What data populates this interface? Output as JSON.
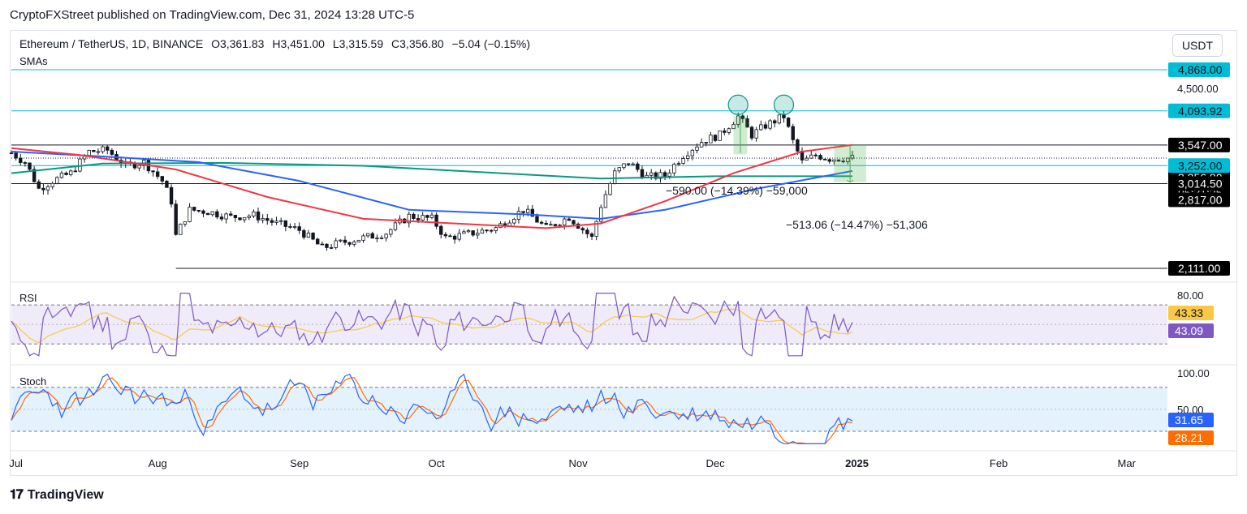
{
  "header": {
    "published_by": "CryptoFXStreet published on TradingView.com, Dec 31, 2024 13:28 UTC-5"
  },
  "symbol": {
    "name": "Ethereum / TetherUS, 1D, BINANCE",
    "open": "O3,361.83",
    "high": "H3,451.00",
    "low": "L3,315.59",
    "close": "C3,356.80",
    "change": "−5.04 (−0.15%)",
    "indicator": "SMAs",
    "currency": "USDT"
  },
  "brand": {
    "logo_text": "TradingView"
  },
  "colors": {
    "up": "#26a69a",
    "down": "#131722",
    "sma_red": "#f23645",
    "sma_blue": "#2962ff",
    "sma_green": "#089981",
    "cyan_line": "#00bcd4",
    "rsi": "#7e57c2",
    "rsi_ma": "#f9c846",
    "stoch_k": "#2962ff",
    "stoch_d": "#ff6d00"
  },
  "chart_data": [
    {
      "type": "candlestick",
      "x_ticks": [
        "Jul",
        "Aug",
        "Sep",
        "Oct",
        "Nov",
        "Dec",
        "2025",
        "Feb",
        "Mar"
      ],
      "y_ticks": [
        "4,500.00"
      ],
      "price_labels": [
        {
          "label": "4,868.00",
          "value": 4868,
          "bg": "#00bcd4",
          "color": "#131722"
        },
        {
          "label": "4,093.92",
          "value": 4093.92,
          "bg": "#00bcd4",
          "color": "#131722"
        },
        {
          "label": "3,547.00",
          "value": 3547,
          "bg": "#000000",
          "color": "#ffffff"
        },
        {
          "label": "3,356.80",
          "value": 3356.8,
          "bg": "#000000",
          "color": "#ffffff"
        },
        {
          "label": "05:31:25",
          "value": 3260,
          "bg": "#000000",
          "color": "#ffffff"
        },
        {
          "label": "3,252.00",
          "value": 3252,
          "bg": "#00bcd4",
          "color": "#131722"
        },
        {
          "label": "3,014.50",
          "value": 3014.5,
          "bg": "#000000",
          "color": "#ffffff"
        },
        {
          "label": "2,817.00",
          "value": 2817,
          "bg": "#000000",
          "color": "#ffffff"
        },
        {
          "label": "2,111.00",
          "value": 2111,
          "bg": "#000000",
          "color": "#ffffff"
        }
      ],
      "horizontal_levels": [
        {
          "value": 4868,
          "color": "#00bcd4"
        },
        {
          "value": 4093.92,
          "color": "#00bcd4"
        },
        {
          "value": 3547,
          "color": "#131722"
        },
        {
          "value": 3252,
          "color": "#00bcd4"
        },
        {
          "value": 3014.5,
          "color": "#131722"
        },
        {
          "value": 2111,
          "color": "#131722"
        }
      ],
      "annotations": [
        "−590.00 (−14.39%) −59,000",
        "−513.06 (−14.47%) −51,306"
      ],
      "close_path": [
        [
          "2024-06-30",
          3430
        ],
        [
          "2024-07-03",
          3300
        ],
        [
          "2024-07-06",
          2950
        ],
        [
          "2024-07-09",
          3050
        ],
        [
          "2024-07-13",
          3150
        ],
        [
          "2024-07-17",
          3450
        ],
        [
          "2024-07-21",
          3470
        ],
        [
          "2024-07-25",
          3250
        ],
        [
          "2024-07-29",
          3300
        ],
        [
          "2024-08-02",
          3050
        ],
        [
          "2024-08-04",
          2800
        ],
        [
          "2024-08-05",
          2420
        ],
        [
          "2024-08-08",
          2700
        ],
        [
          "2024-08-12",
          2680
        ],
        [
          "2024-08-17",
          2620
        ],
        [
          "2024-08-22",
          2640
        ],
        [
          "2024-08-27",
          2550
        ],
        [
          "2024-09-01",
          2480
        ],
        [
          "2024-09-06",
          2300
        ],
        [
          "2024-09-10",
          2350
        ],
        [
          "2024-09-15",
          2400
        ],
        [
          "2024-09-20",
          2450
        ],
        [
          "2024-09-25",
          2630
        ],
        [
          "2024-09-30",
          2600
        ],
        [
          "2024-10-03",
          2400
        ],
        [
          "2024-10-08",
          2440
        ],
        [
          "2024-10-14",
          2500
        ],
        [
          "2024-10-20",
          2700
        ],
        [
          "2024-10-25",
          2500
        ],
        [
          "2024-10-30",
          2620
        ],
        [
          "2024-11-04",
          2400
        ],
        [
          "2024-11-06",
          2750
        ],
        [
          "2024-11-09",
          3150
        ],
        [
          "2024-11-12",
          3300
        ],
        [
          "2024-11-16",
          3100
        ],
        [
          "2024-11-20",
          3120
        ],
        [
          "2024-11-24",
          3400
        ],
        [
          "2024-11-28",
          3600
        ],
        [
          "2024-12-02",
          3700
        ],
        [
          "2024-12-06",
          4000
        ],
        [
          "2024-12-09",
          3700
        ],
        [
          "2024-12-12",
          3850
        ],
        [
          "2024-12-16",
          4000
        ],
        [
          "2024-12-18",
          3600
        ],
        [
          "2024-12-20",
          3300
        ],
        [
          "2024-12-23",
          3400
        ],
        [
          "2024-12-26",
          3350
        ],
        [
          "2024-12-31",
          3356.8
        ]
      ],
      "sma_red": [
        [
          "2024-06-30",
          3500
        ],
        [
          "2024-07-15",
          3400
        ],
        [
          "2024-08-05",
          3200
        ],
        [
          "2024-08-25",
          2850
        ],
        [
          "2024-09-15",
          2600
        ],
        [
          "2024-10-05",
          2550
        ],
        [
          "2024-10-25",
          2500
        ],
        [
          "2024-11-06",
          2550
        ],
        [
          "2024-11-20",
          2800
        ],
        [
          "2024-12-05",
          3150
        ],
        [
          "2024-12-20",
          3450
        ],
        [
          "2024-12-31",
          3547
        ]
      ],
      "sma_blue": [
        [
          "2024-06-30",
          3450
        ],
        [
          "2024-07-20",
          3380
        ],
        [
          "2024-08-10",
          3300
        ],
        [
          "2024-09-01",
          3050
        ],
        [
          "2024-09-25",
          2700
        ],
        [
          "2024-10-20",
          2650
        ],
        [
          "2024-11-06",
          2600
        ],
        [
          "2024-11-20",
          2700
        ],
        [
          "2024-12-10",
          2950
        ],
        [
          "2024-12-31",
          3180
        ]
      ],
      "sma_green": [
        [
          "2024-06-30",
          3150
        ],
        [
          "2024-07-20",
          3280
        ],
        [
          "2024-08-15",
          3290
        ],
        [
          "2024-09-15",
          3250
        ],
        [
          "2024-10-15",
          3150
        ],
        [
          "2024-11-06",
          3080
        ],
        [
          "2024-12-01",
          3110
        ],
        [
          "2024-12-31",
          3110
        ]
      ]
    },
    {
      "type": "line",
      "title": "RSI",
      "y_ticks": [
        "80.00"
      ],
      "bands": [
        30,
        70
      ],
      "values_labels": [
        {
          "label": "43.33",
          "bg": "#f9c846",
          "color": "#131722"
        },
        {
          "label": "43.09",
          "bg": "#7e57c2",
          "color": "#ffffff"
        }
      ]
    },
    {
      "type": "line",
      "title": "Stoch",
      "y_ticks": [
        "100.00",
        "50.00"
      ],
      "bands": [
        20,
        80
      ],
      "values_labels": [
        {
          "label": "31.65",
          "bg": "#2962ff",
          "color": "#ffffff"
        },
        {
          "label": "28.21",
          "bg": "#ff6d00",
          "color": "#ffffff"
        }
      ]
    }
  ]
}
